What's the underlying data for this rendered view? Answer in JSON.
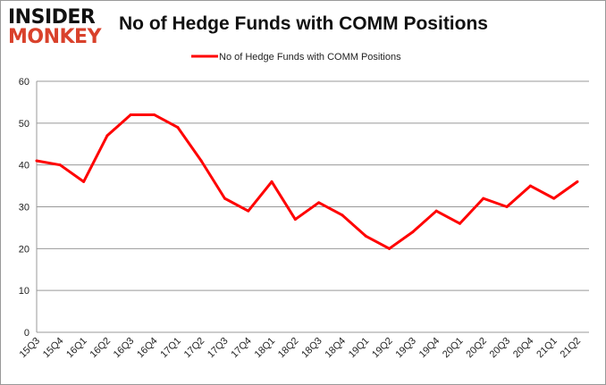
{
  "logo": {
    "line1": "INSIDER",
    "line2": "MONKEY"
  },
  "chart_data": {
    "type": "line",
    "title": "No of Hedge Funds with COMM Positions",
    "legend_position": "top",
    "grid": true,
    "ylim": [
      0,
      60
    ],
    "yticks": [
      0,
      10,
      20,
      30,
      40,
      50,
      60
    ],
    "categories": [
      "15Q3",
      "15Q4",
      "16Q1",
      "16Q2",
      "16Q3",
      "16Q4",
      "17Q1",
      "17Q2",
      "17Q3",
      "17Q4",
      "18Q1",
      "18Q2",
      "18Q3",
      "18Q4",
      "19Q1",
      "19Q2",
      "19Q3",
      "19Q4",
      "20Q1",
      "20Q2",
      "20Q3",
      "20Q4",
      "21Q1",
      "21Q2"
    ],
    "series": [
      {
        "name": "No of Hedge Funds with COMM Positions",
        "color": "#ff0000",
        "values": [
          41,
          40,
          36,
          47,
          52,
          52,
          49,
          41,
          32,
          29,
          36,
          27,
          31,
          28,
          23,
          20,
          24,
          29,
          26,
          32,
          30,
          35,
          32,
          36
        ]
      }
    ]
  }
}
